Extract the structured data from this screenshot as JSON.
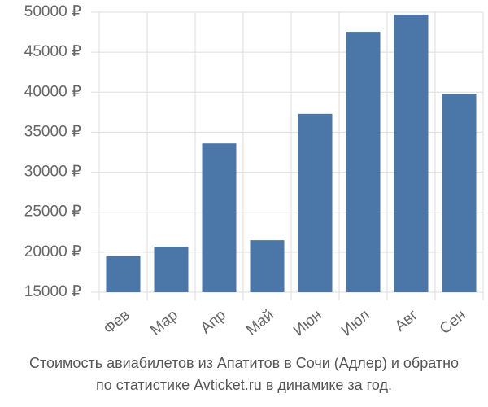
{
  "chart_data": {
    "type": "bar",
    "title": "Стоимость авиабилетов из Апатитов в Сочи (Адлер) и обратно",
    "subtitle": "по статистике Avticket.ru в динамике за год.",
    "categories": [
      "Фев",
      "Мар",
      "Апр",
      "Май",
      "Июн",
      "Июл",
      "Авг",
      "Сен"
    ],
    "values": [
      19500,
      20700,
      33600,
      21500,
      37300,
      47550,
      49700,
      39800
    ],
    "color": "#4a76a8",
    "ylim": [
      15000,
      50000
    ],
    "yticks": [
      {
        "value": 15000,
        "label": "15000 ₽"
      },
      {
        "value": 20000,
        "label": "20000 ₽"
      },
      {
        "value": 25000,
        "label": "25000 ₽"
      },
      {
        "value": 30000,
        "label": "30000 ₽"
      },
      {
        "value": 35000,
        "label": "35000 ₽"
      },
      {
        "value": 40000,
        "label": "40000 ₽"
      },
      {
        "value": 45000,
        "label": "45000 ₽"
      },
      {
        "value": 50000,
        "label": "50000 ₽"
      }
    ],
    "grid": true
  }
}
